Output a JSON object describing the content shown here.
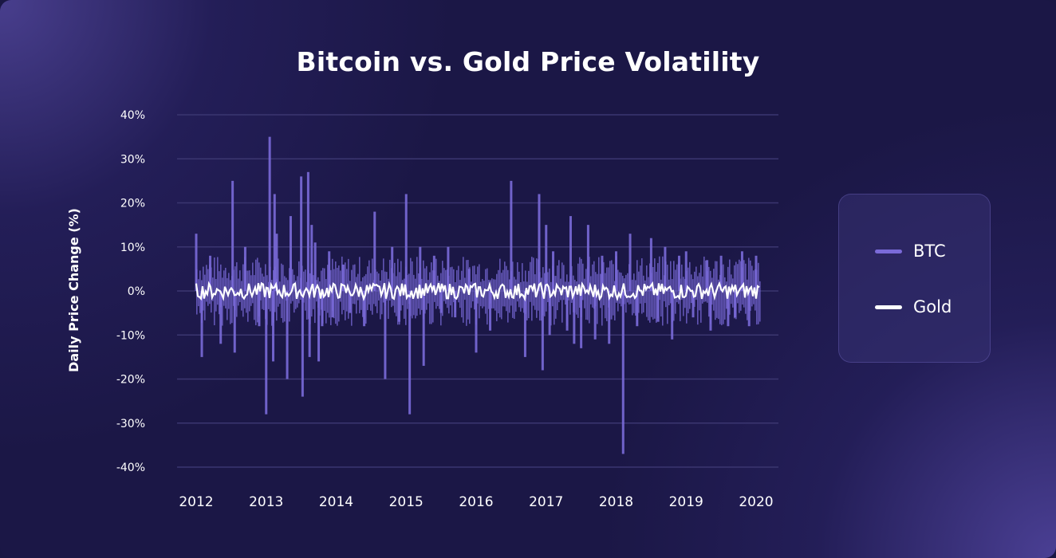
{
  "colors": {
    "btc": "#7a6ad8",
    "gold": "#ffffff",
    "grid": "#3b3670",
    "text": "#ffffff"
  },
  "chart_data": {
    "type": "bar",
    "title": "Bitcoin vs. Gold Price Volatility",
    "ylabel": "Daily Price Change (%)",
    "xlabel": "",
    "ylim": [
      -40,
      40
    ],
    "y_ticks": [
      "40%",
      "30%",
      "20%",
      "10%",
      "0%",
      "-10%",
      "-20%",
      "-30%",
      "-40%"
    ],
    "y_tick_values": [
      40,
      30,
      20,
      10,
      0,
      -10,
      -20,
      -30,
      -40
    ],
    "x_ticks": [
      "2012",
      "2013",
      "2014",
      "2015",
      "2016",
      "2017",
      "2018",
      "2019",
      "2020"
    ],
    "xlim": [
      2012,
      2020
    ],
    "grid": true,
    "legend_position": "right",
    "series": [
      {
        "name": "BTC",
        "type": "bar",
        "x": [
          2012.0,
          2012.08,
          2012.2,
          2012.35,
          2012.52,
          2012.55,
          2012.7,
          2012.9,
          2013.0,
          2013.05,
          2013.1,
          2013.12,
          2013.15,
          2013.3,
          2013.35,
          2013.5,
          2013.52,
          2013.6,
          2013.62,
          2013.65,
          2013.7,
          2013.75,
          2013.8,
          2013.9,
          2013.95,
          2014.1,
          2014.2,
          2014.4,
          2014.55,
          2014.7,
          2014.8,
          2014.9,
          2015.0,
          2015.05,
          2015.2,
          2015.25,
          2015.4,
          2015.5,
          2015.6,
          2015.7,
          2015.9,
          2016.0,
          2016.2,
          2016.5,
          2016.7,
          2016.9,
          2016.95,
          2017.0,
          2017.05,
          2017.1,
          2017.3,
          2017.35,
          2017.4,
          2017.5,
          2017.6,
          2017.7,
          2017.8,
          2017.9,
          2018.0,
          2018.1,
          2018.2,
          2018.3,
          2018.5,
          2018.6,
          2018.7,
          2018.8,
          2018.9,
          2019.0,
          2019.1,
          2019.3,
          2019.35,
          2019.5,
          2019.6,
          2019.7,
          2019.8,
          2019.9,
          2020.0
        ],
        "values": [
          13,
          -15,
          8,
          -12,
          25,
          -14,
          10,
          -8,
          -28,
          35,
          -16,
          22,
          13,
          -20,
          17,
          26,
          -24,
          27,
          -15,
          15,
          11,
          -16,
          -8,
          9,
          -6,
          6,
          -5,
          -8,
          18,
          -20,
          10,
          -7,
          22,
          -28,
          10,
          -17,
          8,
          -5,
          10,
          -6,
          5,
          -14,
          -9,
          25,
          -15,
          22,
          -18,
          15,
          -10,
          9,
          -9,
          17,
          -12,
          -13,
          15,
          -11,
          8,
          -12,
          9,
          -37,
          13,
          -8,
          12,
          -7,
          10,
          -11,
          8,
          9,
          -6,
          7,
          -9,
          8,
          -8,
          -6,
          9,
          -8,
          8
        ]
      },
      {
        "name": "Gold",
        "type": "line",
        "note_only_visible": false
      }
    ]
  }
}
